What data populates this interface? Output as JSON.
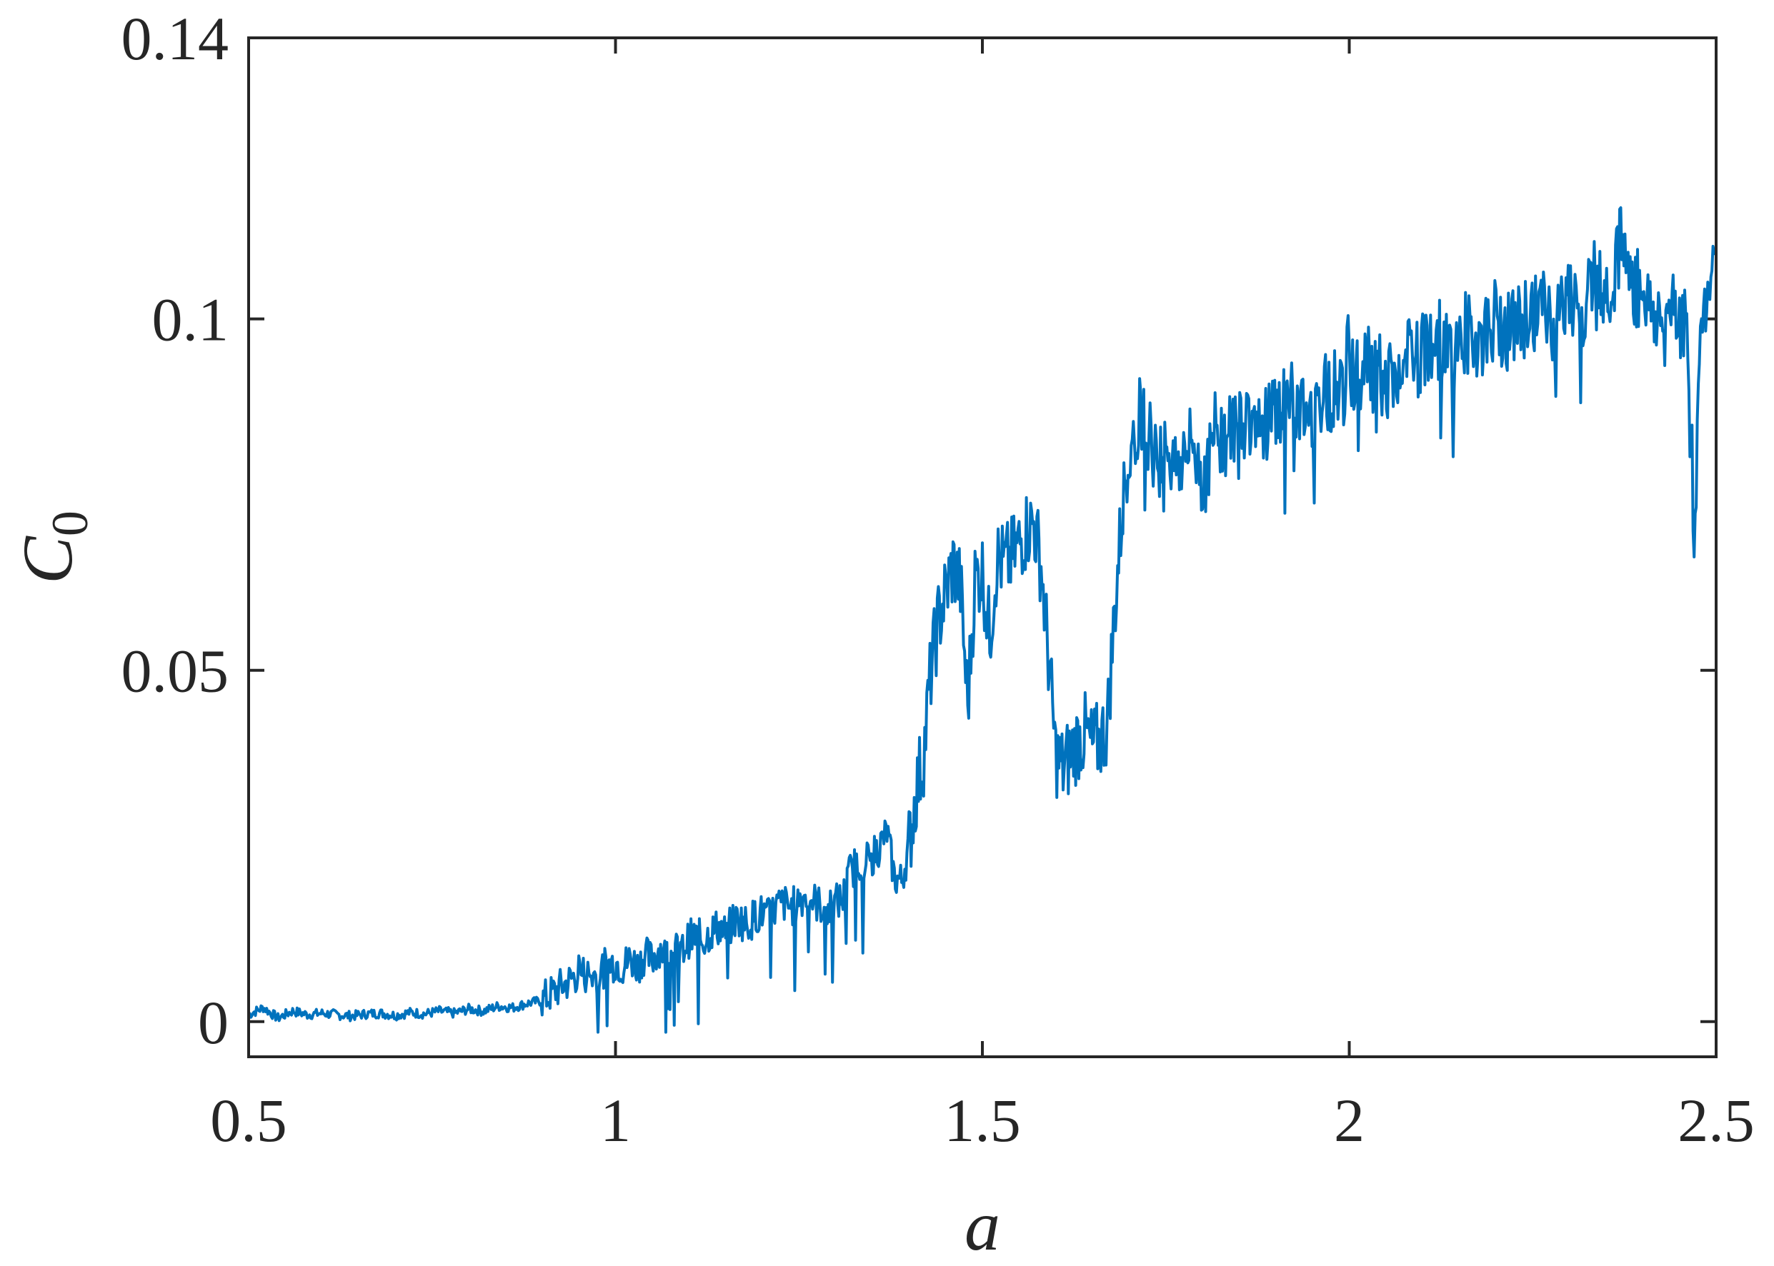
{
  "chart_data": {
    "type": "line",
    "title": "",
    "xlabel": "a",
    "ylabel": {
      "main": "C",
      "subscript": "0"
    },
    "xlim": [
      0.5,
      2.5
    ],
    "ylim": [
      -0.005,
      0.14
    ],
    "xticks": [
      0.5,
      1,
      1.5,
      2,
      2.5
    ],
    "xtick_labels": [
      "0.5",
      "1",
      "1.5",
      "2",
      "2.5"
    ],
    "yticks": [
      0,
      0.05,
      0.1,
      0.14
    ],
    "ytick_labels": [
      "0",
      "0.05",
      "0.1",
      "0.14"
    ],
    "grid": false,
    "line_color": "#0072BD",
    "axis_color": "#262626",
    "series": [
      {
        "x": [
          0.5,
          0.52,
          0.54,
          0.56,
          0.58,
          0.6,
          0.62,
          0.64,
          0.66,
          0.68,
          0.7,
          0.72,
          0.74,
          0.76,
          0.78,
          0.8,
          0.82,
          0.84,
          0.86,
          0.88,
          0.9,
          0.92,
          0.94,
          0.95,
          0.97,
          0.99,
          1.0,
          1.01,
          1.02,
          1.03,
          1.04,
          1.05,
          1.06,
          1.07,
          1.08,
          1.09,
          1.1,
          1.11,
          1.12,
          1.13,
          1.14,
          1.15,
          1.16,
          1.17,
          1.18,
          1.19,
          1.2,
          1.21,
          1.22,
          1.23,
          1.24,
          1.25,
          1.26,
          1.27,
          1.28,
          1.29,
          1.3,
          1.31,
          1.32,
          1.33,
          1.34,
          1.35,
          1.36,
          1.37,
          1.38,
          1.39,
          1.4,
          1.41,
          1.42,
          1.43,
          1.44,
          1.45,
          1.46,
          1.47,
          1.48,
          1.49,
          1.5,
          1.51,
          1.52,
          1.53,
          1.54,
          1.55,
          1.56,
          1.57,
          1.58,
          1.59,
          1.6,
          1.61,
          1.62,
          1.63,
          1.64,
          1.65,
          1.66,
          1.67,
          1.68,
          1.69,
          1.7,
          1.71,
          1.72,
          1.73,
          1.74,
          1.75,
          1.76,
          1.77,
          1.78,
          1.79,
          1.8,
          1.81,
          1.82,
          1.83,
          1.84,
          1.86,
          1.88,
          1.9,
          1.92,
          1.94,
          1.96,
          1.98,
          2.0,
          2.02,
          2.04,
          2.06,
          2.08,
          2.1,
          2.12,
          2.14,
          2.16,
          2.18,
          2.2,
          2.22,
          2.24,
          2.26,
          2.28,
          2.3,
          2.32,
          2.34,
          2.36,
          2.37,
          2.38,
          2.39,
          2.4,
          2.41,
          2.42,
          2.43,
          2.44,
          2.45,
          2.46,
          2.47,
          2.48,
          2.49,
          2.5
        ],
        "y": [
          0.001,
          0.002,
          0.0005,
          0.0015,
          0.001,
          0.0012,
          0.001,
          0.0008,
          0.0011,
          0.0012,
          0.0009,
          0.0013,
          0.0011,
          0.0015,
          0.0012,
          0.0018,
          0.0015,
          0.0022,
          0.002,
          0.0026,
          0.003,
          0.0045,
          0.006,
          0.007,
          0.0065,
          0.008,
          0.0085,
          0.0078,
          0.009,
          0.008,
          0.0095,
          0.0088,
          0.0105,
          0.0092,
          0.01,
          0.0098,
          0.0118,
          0.0122,
          0.0115,
          0.0128,
          0.0135,
          0.0125,
          0.0142,
          0.0145,
          0.0138,
          0.015,
          0.0155,
          0.0148,
          0.0165,
          0.0168,
          0.0162,
          0.0175,
          0.0178,
          0.0172,
          0.0165,
          0.0158,
          0.017,
          0.0175,
          0.0215,
          0.0225,
          0.023,
          0.0235,
          0.025,
          0.027,
          0.0205,
          0.02,
          0.025,
          0.033,
          0.038,
          0.05,
          0.057,
          0.061,
          0.065,
          0.062,
          0.045,
          0.063,
          0.064,
          0.055,
          0.066,
          0.065,
          0.066,
          0.068,
          0.07,
          0.071,
          0.065,
          0.052,
          0.038,
          0.036,
          0.038,
          0.04,
          0.041,
          0.039,
          0.04,
          0.042,
          0.058,
          0.072,
          0.083,
          0.085,
          0.088,
          0.082,
          0.08,
          0.084,
          0.079,
          0.08,
          0.081,
          0.082,
          0.077,
          0.08,
          0.085,
          0.083,
          0.084,
          0.086,
          0.085,
          0.087,
          0.088,
          0.086,
          0.089,
          0.09,
          0.091,
          0.092,
          0.093,
          0.09,
          0.094,
          0.095,
          0.097,
          0.095,
          0.098,
          0.097,
          0.1,
          0.098,
          0.1,
          0.102,
          0.099,
          0.103,
          0.102,
          0.104,
          0.106,
          0.112,
          0.107,
          0.104,
          0.105,
          0.101,
          0.1,
          0.099,
          0.104,
          0.1,
          0.098,
          0.07,
          0.1,
          0.105,
          0.11
        ]
      }
    ]
  }
}
